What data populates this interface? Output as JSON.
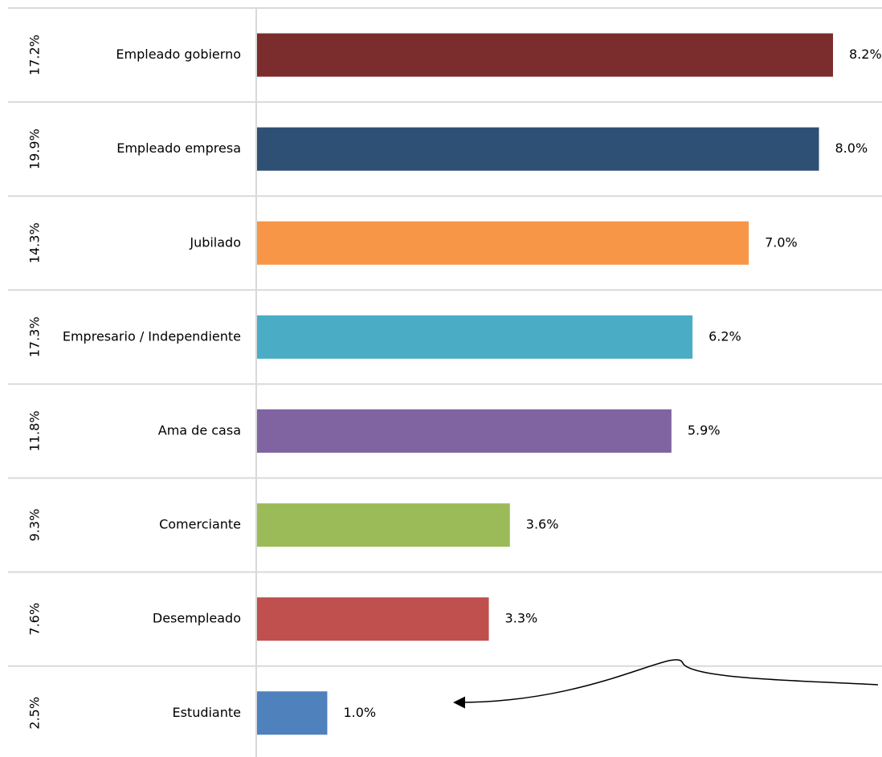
{
  "chart_data": {
    "type": "bar",
    "orientation": "horizontal",
    "categories": [
      "Empleado gobierno",
      "Empleado empresa",
      "Jubilado",
      "Empresario / Independiente",
      "Ama de casa",
      "Comerciante",
      "Desempleado",
      "Estudiante"
    ],
    "values": [
      8.2,
      8.0,
      7.0,
      6.2,
      5.9,
      3.6,
      3.3,
      1.0
    ],
    "value_labels": [
      "8.2%",
      "8.0%",
      "7.0%",
      "6.2%",
      "5.9%",
      "3.6%",
      "3.3%",
      "1.0%"
    ],
    "secondary_labels": [
      "17.2%",
      "19.9%",
      "14.3%",
      "17.3%",
      "11.8%",
      "9.3%",
      "7.6%",
      "2.5%"
    ],
    "colors": [
      "#7b2c2c",
      "#2e5075",
      "#f79646",
      "#4bacc6",
      "#8064a2",
      "#9bbb59",
      "#c0504d",
      "#4f81bd"
    ],
    "xlim": [
      0,
      8.2
    ],
    "grid": false,
    "legend": "none",
    "annotation": "arrow pointing to Estudiante bar"
  }
}
